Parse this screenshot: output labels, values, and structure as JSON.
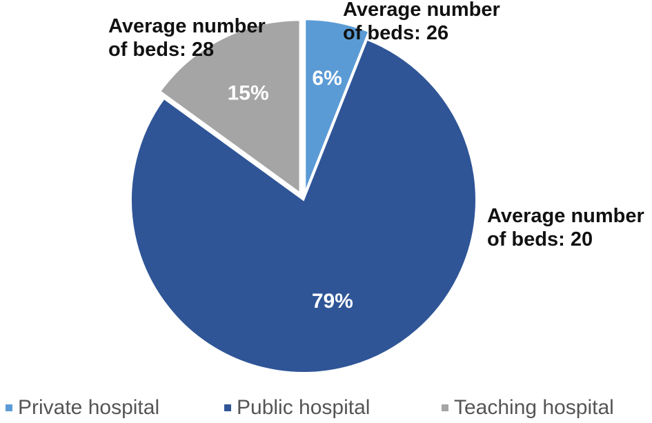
{
  "chart_data": {
    "type": "pie",
    "categories": [
      "Private hospital",
      "Public hospital",
      "Teaching hospital"
    ],
    "values": [
      6,
      79,
      15
    ],
    "value_labels": [
      "6%",
      "79%",
      "15%"
    ],
    "colors": [
      "#5B9BD5",
      "#2F5597",
      "#A5A5A5"
    ],
    "exploded": [
      true,
      false,
      true
    ],
    "start_angle_deg": 0,
    "direction": "clockwise",
    "legend_position": "bottom",
    "annotations": [
      {
        "line1": "Average number",
        "line2": "of beds: 26"
      },
      {
        "line1": "Average number",
        "line2": "of beds: 20"
      },
      {
        "line1": "Average number",
        "line2": "of beds: 28"
      }
    ]
  }
}
